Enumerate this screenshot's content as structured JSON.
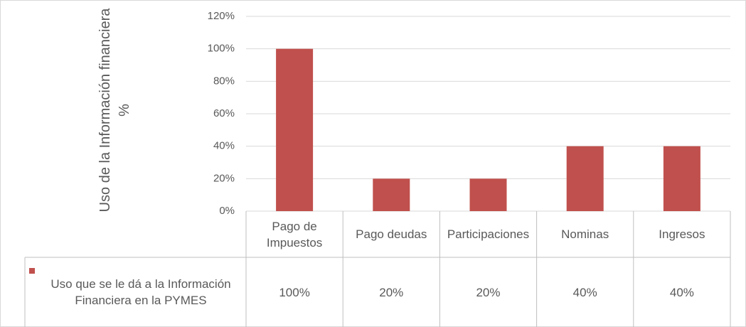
{
  "chart_data": {
    "type": "bar",
    "y_axis_label": "Uso de la Información financiera %",
    "categories": [
      "Pago de Impuestos",
      "Pago deudas",
      "Participaciones",
      "Nominas",
      "Ingresos"
    ],
    "series": [
      {
        "name": "Uso que se le dá a la Información Financiera en la PYMES",
        "color": "#c0504d",
        "values": [
          100,
          20,
          20,
          40,
          40
        ],
        "value_labels": [
          "100%",
          "20%",
          "20%",
          "40%",
          "40%"
        ]
      }
    ],
    "ylim": [
      0,
      120
    ],
    "yticks": [
      {
        "value": 0,
        "label": "0%"
      },
      {
        "value": 20,
        "label": "20%"
      },
      {
        "value": 40,
        "label": "40%"
      },
      {
        "value": 60,
        "label": "60%"
      },
      {
        "value": 80,
        "label": "80%"
      },
      {
        "value": 100,
        "label": "100%"
      },
      {
        "value": 120,
        "label": "120%"
      }
    ],
    "grid": true,
    "legend": "table"
  }
}
